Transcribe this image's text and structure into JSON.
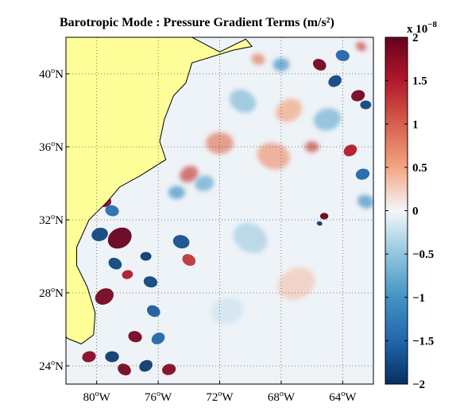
{
  "chart_data": {
    "type": "heatmap",
    "title": "Barotropic Mode : Pressure Gradient Terms (m/s²)",
    "map": {
      "lon_range": [
        -82,
        -62
      ],
      "lat_range": [
        23,
        42
      ],
      "x_ticks": [
        {
          "value": -80,
          "label": "80°W"
        },
        {
          "value": -76,
          "label": "76°W"
        },
        {
          "value": -72,
          "label": "72°W"
        },
        {
          "value": -68,
          "label": "68°W"
        },
        {
          "value": -64,
          "label": "64°W"
        }
      ],
      "y_ticks": [
        {
          "value": 24,
          "label": "24°N"
        },
        {
          "value": 28,
          "label": "28°N"
        },
        {
          "value": 32,
          "label": "32°N"
        },
        {
          "value": 36,
          "label": "36°N"
        },
        {
          "value": 40,
          "label": "40°N"
        }
      ],
      "grid": true,
      "land_color": "#ffff99",
      "coastline": [
        [
          -82,
          42
        ],
        [
          -73.8,
          42
        ],
        [
          -72.0,
          41.2
        ],
        [
          -70.3,
          41.9
        ],
        [
          -69.9,
          41.5
        ],
        [
          -71.1,
          41.3
        ],
        [
          -73.8,
          40.6
        ],
        [
          -74.2,
          39.5
        ],
        [
          -75.0,
          38.8
        ],
        [
          -75.6,
          37.5
        ],
        [
          -75.9,
          36.3
        ],
        [
          -75.5,
          35.3
        ],
        [
          -77.2,
          34.4
        ],
        [
          -78.5,
          33.8
        ],
        [
          -79.3,
          33.0
        ],
        [
          -80.5,
          32.0
        ],
        [
          -81.3,
          30.5
        ],
        [
          -81.3,
          29.5
        ],
        [
          -80.6,
          28.3
        ],
        [
          -80.1,
          26.9
        ],
        [
          -80.2,
          25.7
        ],
        [
          -81.0,
          25.2
        ],
        [
          -81.9,
          25.5
        ],
        [
          -82,
          25.6
        ]
      ],
      "features": [
        {
          "lon": -78.5,
          "lat": 31.0,
          "value": 2.0,
          "size": 0.9
        },
        {
          "lon": -79.8,
          "lat": 31.2,
          "value": -1.8,
          "size": 0.6
        },
        {
          "lon": -79.5,
          "lat": 33.0,
          "value": 1.8,
          "size": 0.5
        },
        {
          "lon": -79.0,
          "lat": 32.5,
          "value": -1.4,
          "size": 0.5
        },
        {
          "lon": -78.8,
          "lat": 29.6,
          "value": -1.8,
          "size": 0.5
        },
        {
          "lon": -79.5,
          "lat": 27.8,
          "value": 1.9,
          "size": 0.7
        },
        {
          "lon": -78.0,
          "lat": 29.0,
          "value": 1.5,
          "size": 0.4
        },
        {
          "lon": -76.8,
          "lat": 30.0,
          "value": -1.9,
          "size": 0.4
        },
        {
          "lon": -76.5,
          "lat": 28.6,
          "value": -1.8,
          "size": 0.5
        },
        {
          "lon": -76.3,
          "lat": 27.0,
          "value": -1.6,
          "size": 0.5
        },
        {
          "lon": -76.0,
          "lat": 25.5,
          "value": -1.5,
          "size": 0.5
        },
        {
          "lon": -80.5,
          "lat": 24.5,
          "value": 1.8,
          "size": 0.5
        },
        {
          "lon": -79.0,
          "lat": 24.5,
          "value": -1.9,
          "size": 0.5
        },
        {
          "lon": -77.5,
          "lat": 25.6,
          "value": 1.9,
          "size": 0.5
        },
        {
          "lon": -78.2,
          "lat": 23.8,
          "value": 1.9,
          "size": 0.5
        },
        {
          "lon": -76.8,
          "lat": 24.0,
          "value": -1.9,
          "size": 0.5
        },
        {
          "lon": -75.3,
          "lat": 23.8,
          "value": 1.8,
          "size": 0.5
        },
        {
          "lon": -74.8,
          "lat": 33.5,
          "value": -1.0,
          "size": 0.6
        },
        {
          "lon": -74.5,
          "lat": 30.8,
          "value": -1.7,
          "size": 0.6
        },
        {
          "lon": -74.0,
          "lat": 29.8,
          "value": 1.3,
          "size": 0.5
        },
        {
          "lon": -74.0,
          "lat": 34.5,
          "value": 1.2,
          "size": 0.7
        },
        {
          "lon": -73.0,
          "lat": 34.0,
          "value": -0.8,
          "size": 0.7
        },
        {
          "lon": -72.0,
          "lat": 36.2,
          "value": 0.8,
          "size": 1.0
        },
        {
          "lon": -68.5,
          "lat": 35.5,
          "value": 0.6,
          "size": 1.2
        },
        {
          "lon": -70.5,
          "lat": 38.5,
          "value": -0.6,
          "size": 1.0
        },
        {
          "lon": -67.5,
          "lat": 38.0,
          "value": 0.5,
          "size": 1.0
        },
        {
          "lon": -65.0,
          "lat": 37.5,
          "value": -0.7,
          "size": 1.0
        },
        {
          "lon": -65.2,
          "lat": 32.2,
          "value": 2.0,
          "size": 0.3
        },
        {
          "lon": -65.5,
          "lat": 31.8,
          "value": -1.9,
          "size": 0.2
        },
        {
          "lon": -65.5,
          "lat": 40.5,
          "value": 1.9,
          "size": 0.5
        },
        {
          "lon": -64.5,
          "lat": 39.6,
          "value": -1.8,
          "size": 0.5
        },
        {
          "lon": -63.0,
          "lat": 38.8,
          "value": 1.9,
          "size": 0.5
        },
        {
          "lon": -62.5,
          "lat": 38.3,
          "value": -1.8,
          "size": 0.4
        },
        {
          "lon": -64.0,
          "lat": 41.0,
          "value": -1.5,
          "size": 0.5
        },
        {
          "lon": -62.8,
          "lat": 41.5,
          "value": 1.2,
          "size": 0.4
        },
        {
          "lon": -63.5,
          "lat": 35.8,
          "value": 1.5,
          "size": 0.5
        },
        {
          "lon": -62.7,
          "lat": 34.5,
          "value": -1.5,
          "size": 0.5
        },
        {
          "lon": -66.0,
          "lat": 36.0,
          "value": 1.2,
          "size": 0.5
        },
        {
          "lon": -62.5,
          "lat": 33.0,
          "value": -1.0,
          "size": 0.6
        },
        {
          "lon": -70.0,
          "lat": 31.0,
          "value": -0.4,
          "size": 1.3
        },
        {
          "lon": -67.0,
          "lat": 28.5,
          "value": 0.3,
          "size": 1.4
        },
        {
          "lon": -71.5,
          "lat": 27.0,
          "value": -0.2,
          "size": 1.2
        },
        {
          "lon": -68.0,
          "lat": 40.5,
          "value": -1.0,
          "size": 0.6
        },
        {
          "lon": -69.5,
          "lat": 40.8,
          "value": 0.8,
          "size": 0.5
        }
      ]
    },
    "colorbar": {
      "range": [
        -2,
        2
      ],
      "ticks": [
        {
          "value": 2,
          "label": "2"
        },
        {
          "value": 1.5,
          "label": "1.5"
        },
        {
          "value": 1,
          "label": "1"
        },
        {
          "value": 0.5,
          "label": "0.5"
        },
        {
          "value": 0,
          "label": "0"
        },
        {
          "value": -0.5,
          "label": "−0.5"
        },
        {
          "value": -1,
          "label": "−1"
        },
        {
          "value": -1.5,
          "label": "−1.5"
        },
        {
          "value": -2,
          "label": "−2"
        }
      ],
      "scale_label": "x 10",
      "scale_exponent": "−8",
      "stops": [
        {
          "value": -2,
          "color": "#053061"
        },
        {
          "value": -1.5,
          "color": "#2166ac"
        },
        {
          "value": -1,
          "color": "#4393c3"
        },
        {
          "value": -0.5,
          "color": "#92c5de"
        },
        {
          "value": 0,
          "color": "#f4f7fb"
        },
        {
          "value": 0.5,
          "color": "#f4a582"
        },
        {
          "value": 1,
          "color": "#d6604d"
        },
        {
          "value": 1.5,
          "color": "#b2182b"
        },
        {
          "value": 2,
          "color": "#67001f"
        }
      ]
    }
  }
}
